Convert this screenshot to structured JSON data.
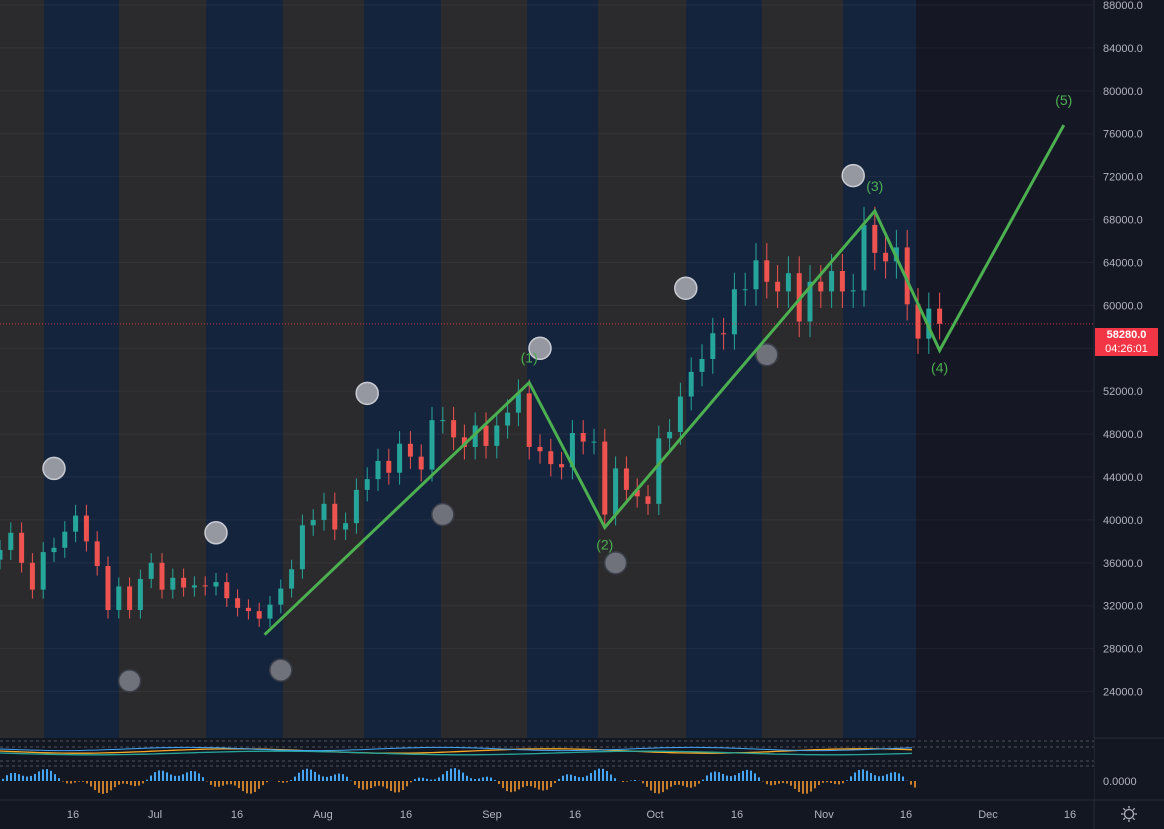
{
  "chart_data": {
    "type": "candlestick",
    "ylim": [
      22000,
      88000
    ],
    "y_ticks": [
      "88000.0",
      "84000.0",
      "80000.0",
      "76000.0",
      "72000.0",
      "68000.0",
      "64000.0",
      "60000.0",
      "56000.0",
      "52000.0",
      "48000.0",
      "44000.0",
      "40000.0",
      "36000.0",
      "32000.0",
      "28000.0",
      "24000.0"
    ],
    "x_ticks": [
      "16",
      "Jul",
      "16",
      "Aug",
      "16",
      "Sep",
      "16",
      "Oct",
      "16",
      "Nov",
      "16",
      "Dec",
      "16"
    ],
    "last_price": "58280.0",
    "countdown": "04:26:01",
    "indicator_zero_label": "0.0000",
    "wave_labels": [
      "(1)",
      "(2)",
      "(3)",
      "(4)",
      "(5)"
    ],
    "wave_points": [
      {
        "date": "2021-07-20",
        "price": 29300
      },
      {
        "date": "2021-09-07",
        "price": 52800
      },
      {
        "date": "2021-09-21",
        "price": 39300
      },
      {
        "date": "2021-11-10",
        "price": 68800
      },
      {
        "date": "2021-11-22",
        "price": 55800
      },
      {
        "date": "2021-12-15",
        "price": 76800
      }
    ],
    "markers_above": [
      {
        "date": "2021-06-11",
        "price": 44800
      },
      {
        "date": "2021-07-11",
        "price": 38800
      },
      {
        "date": "2021-08-08",
        "price": 51800
      },
      {
        "date": "2021-09-09",
        "price": 56000
      },
      {
        "date": "2021-10-06",
        "price": 61600
      },
      {
        "date": "2021-11-06",
        "price": 72100
      }
    ],
    "markers_below": [
      {
        "date": "2021-06-25",
        "price": 25000
      },
      {
        "date": "2021-07-23",
        "price": 26000
      },
      {
        "date": "2021-08-22",
        "price": 40500
      },
      {
        "date": "2021-09-23",
        "price": 36000
      },
      {
        "date": "2021-10-21",
        "price": 55400
      }
    ],
    "closes": [
      {
        "date": "2021-06-01",
        "close": 37200
      },
      {
        "date": "2021-06-03",
        "close": 38800
      },
      {
        "date": "2021-06-05",
        "close": 36000
      },
      {
        "date": "2021-06-07",
        "close": 33500
      },
      {
        "date": "2021-06-09",
        "close": 37000
      },
      {
        "date": "2021-06-11",
        "close": 37400
      },
      {
        "date": "2021-06-13",
        "close": 38900
      },
      {
        "date": "2021-06-15",
        "close": 40400
      },
      {
        "date": "2021-06-17",
        "close": 38000
      },
      {
        "date": "2021-06-19",
        "close": 35700
      },
      {
        "date": "2021-06-21",
        "close": 31600
      },
      {
        "date": "2021-06-23",
        "close": 33800
      },
      {
        "date": "2021-06-25",
        "close": 31600
      },
      {
        "date": "2021-06-27",
        "close": 34500
      },
      {
        "date": "2021-06-29",
        "close": 36000
      },
      {
        "date": "2021-07-01",
        "close": 33500
      },
      {
        "date": "2021-07-03",
        "close": 34600
      },
      {
        "date": "2021-07-05",
        "close": 33700
      },
      {
        "date": "2021-07-07",
        "close": 33900
      },
      {
        "date": "2021-07-09",
        "close": 33800
      },
      {
        "date": "2021-07-11",
        "close": 34200
      },
      {
        "date": "2021-07-13",
        "close": 32700
      },
      {
        "date": "2021-07-15",
        "close": 31800
      },
      {
        "date": "2021-07-17",
        "close": 31500
      },
      {
        "date": "2021-07-19",
        "close": 30800
      },
      {
        "date": "2021-07-21",
        "close": 32100
      },
      {
        "date": "2021-07-23",
        "close": 33600
      },
      {
        "date": "2021-07-25",
        "close": 35400
      },
      {
        "date": "2021-07-27",
        "close": 39500
      },
      {
        "date": "2021-07-29",
        "close": 40000
      },
      {
        "date": "2021-07-31",
        "close": 41500
      },
      {
        "date": "2021-08-02",
        "close": 39100
      },
      {
        "date": "2021-08-04",
        "close": 39700
      },
      {
        "date": "2021-08-06",
        "close": 42800
      },
      {
        "date": "2021-08-08",
        "close": 43800
      },
      {
        "date": "2021-08-10",
        "close": 45500
      },
      {
        "date": "2021-08-12",
        "close": 44400
      },
      {
        "date": "2021-08-14",
        "close": 47100
      },
      {
        "date": "2021-08-16",
        "close": 45900
      },
      {
        "date": "2021-08-18",
        "close": 44700
      },
      {
        "date": "2021-08-20",
        "close": 49300
      },
      {
        "date": "2021-08-22",
        "close": 49300
      },
      {
        "date": "2021-08-24",
        "close": 47700
      },
      {
        "date": "2021-08-26",
        "close": 46800
      },
      {
        "date": "2021-08-28",
        "close": 48800
      },
      {
        "date": "2021-08-30",
        "close": 46900
      },
      {
        "date": "2021-09-01",
        "close": 48800
      },
      {
        "date": "2021-09-03",
        "close": 50000
      },
      {
        "date": "2021-09-05",
        "close": 51800
      },
      {
        "date": "2021-09-07",
        "close": 46800
      },
      {
        "date": "2021-09-09",
        "close": 46400
      },
      {
        "date": "2021-09-11",
        "close": 45200
      },
      {
        "date": "2021-09-13",
        "close": 44900
      },
      {
        "date": "2021-09-15",
        "close": 48100
      },
      {
        "date": "2021-09-17",
        "close": 47300
      },
      {
        "date": "2021-09-19",
        "close": 47300
      },
      {
        "date": "2021-09-21",
        "close": 40500
      },
      {
        "date": "2021-09-23",
        "close": 44800
      },
      {
        "date": "2021-09-25",
        "close": 42800
      },
      {
        "date": "2021-09-27",
        "close": 42200
      },
      {
        "date": "2021-09-29",
        "close": 41500
      },
      {
        "date": "2021-10-01",
        "close": 47600
      },
      {
        "date": "2021-10-03",
        "close": 48200
      },
      {
        "date": "2021-10-05",
        "close": 51500
      },
      {
        "date": "2021-10-07",
        "close": 53800
      },
      {
        "date": "2021-10-09",
        "close": 55000
      },
      {
        "date": "2021-10-11",
        "close": 57400
      },
      {
        "date": "2021-10-13",
        "close": 57300
      },
      {
        "date": "2021-10-15",
        "close": 61500
      },
      {
        "date": "2021-10-17",
        "close": 61500
      },
      {
        "date": "2021-10-19",
        "close": 64200
      },
      {
        "date": "2021-10-21",
        "close": 62200
      },
      {
        "date": "2021-10-23",
        "close": 61300
      },
      {
        "date": "2021-10-25",
        "close": 63000
      },
      {
        "date": "2021-10-27",
        "close": 58500
      },
      {
        "date": "2021-10-29",
        "close": 62200
      },
      {
        "date": "2021-10-31",
        "close": 61300
      },
      {
        "date": "2021-11-02",
        "close": 63200
      },
      {
        "date": "2021-11-04",
        "close": 61300
      },
      {
        "date": "2021-11-06",
        "close": 61400
      },
      {
        "date": "2021-11-08",
        "close": 67500
      },
      {
        "date": "2021-11-10",
        "close": 64900
      },
      {
        "date": "2021-11-12",
        "close": 64100
      },
      {
        "date": "2021-11-14",
        "close": 65400
      },
      {
        "date": "2021-11-16",
        "close": 60100
      },
      {
        "date": "2021-11-18",
        "close": 56900
      },
      {
        "date": "2021-11-20",
        "close": 59700
      },
      {
        "date": "2021-11-22",
        "close": 58280
      }
    ],
    "colors": {
      "up": "#26a69a",
      "down": "#ef5350",
      "wave": "#4caf50",
      "band_gray": "#2b2b2d",
      "band_blue": "#15243d",
      "future": "#151824",
      "marker": "#9598a1",
      "price_line": "#f23645"
    }
  }
}
